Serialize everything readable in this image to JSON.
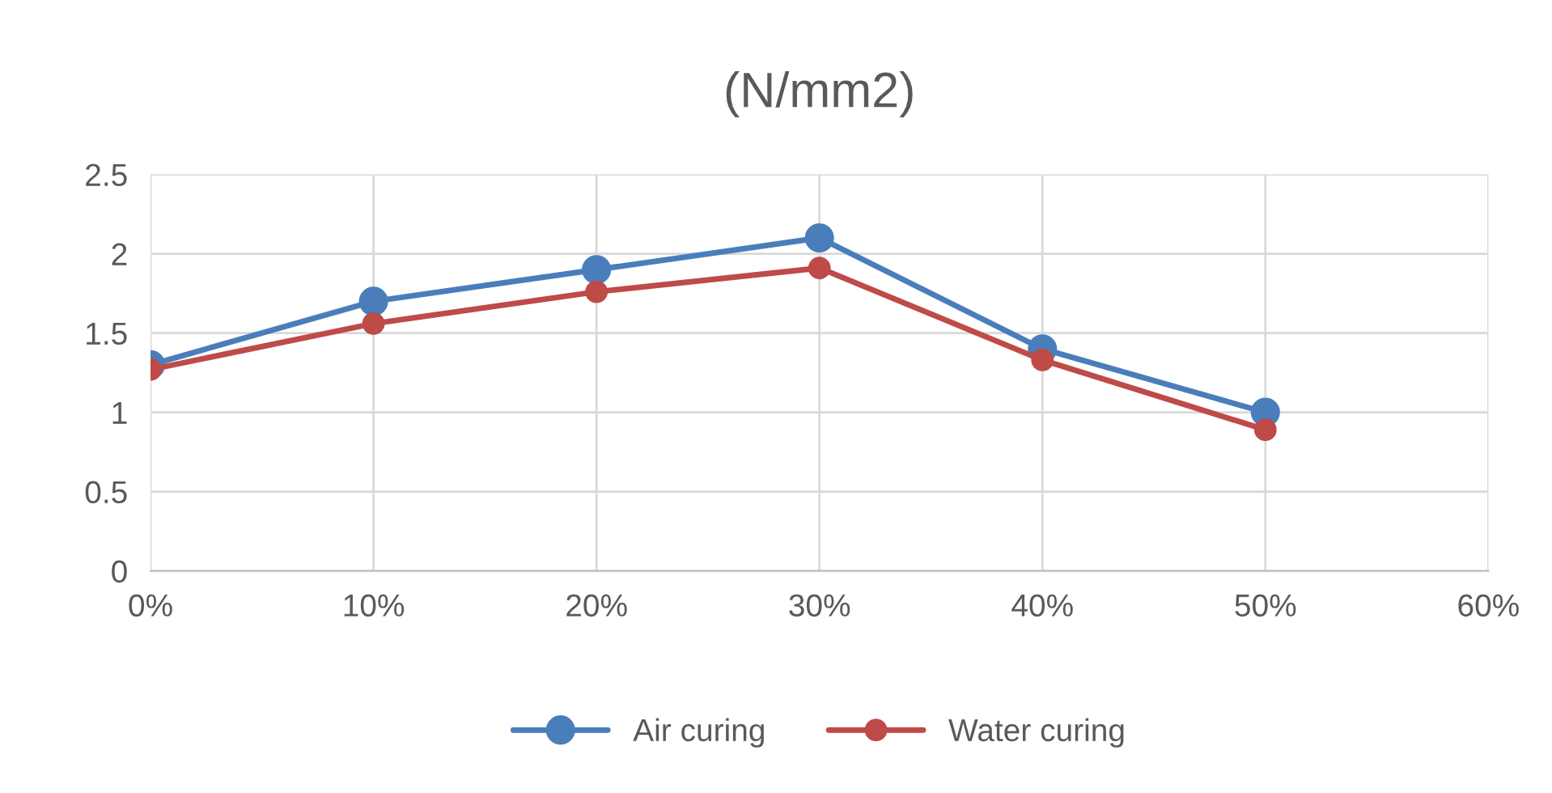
{
  "chart_data": {
    "type": "line",
    "title": "(N/mm2)",
    "x": [
      0,
      10,
      20,
      30,
      40,
      50
    ],
    "series": [
      {
        "name": "Air curing",
        "color": "#4a7ebb",
        "values": [
          1.3,
          1.7,
          1.9,
          2.1,
          1.4,
          1.0
        ]
      },
      {
        "name": "Water curing",
        "color": "#be4b48",
        "values": [
          1.27,
          1.56,
          1.76,
          1.91,
          1.33,
          0.89
        ]
      }
    ],
    "xlim": [
      0,
      60
    ],
    "xticks": [
      {
        "value": 0,
        "label": "0%"
      },
      {
        "value": 10,
        "label": "10%"
      },
      {
        "value": 20,
        "label": "20%"
      },
      {
        "value": 30,
        "label": "30%"
      },
      {
        "value": 40,
        "label": "40%"
      },
      {
        "value": 50,
        "label": "50%"
      },
      {
        "value": 60,
        "label": "60%"
      }
    ],
    "ylim": [
      0,
      2.5
    ],
    "yticks": [
      0,
      0.5,
      1,
      1.5,
      2,
      2.5
    ],
    "grid": true,
    "legend": "bottom",
    "marker": "circle",
    "line_style": "solid"
  }
}
